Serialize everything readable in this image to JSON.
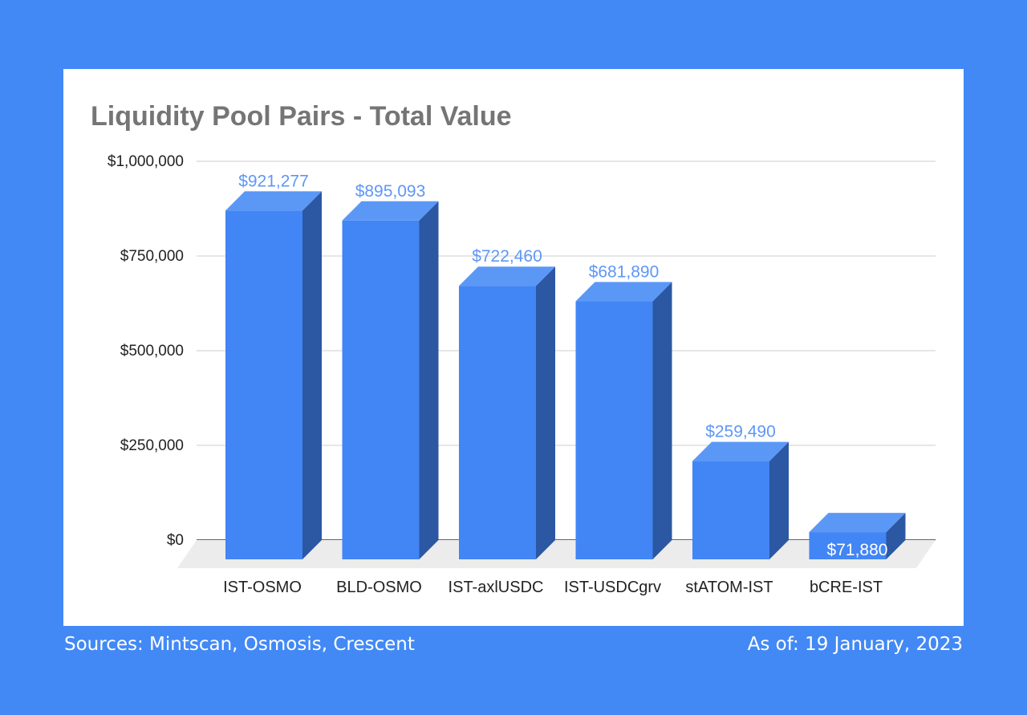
{
  "chart_data": {
    "type": "bar",
    "title": "Liquidity Pool Pairs - Total Value",
    "categories": [
      "IST-OSMO",
      "BLD-OSMO",
      "IST-axlUSDC",
      "IST-USDCgrv",
      "stATOM-IST",
      "bCRE-IST"
    ],
    "values": [
      921277,
      895093,
      722460,
      681890,
      259490,
      71880
    ],
    "value_labels": [
      "$921,277",
      "$895,093",
      "$722,460",
      "$681,890",
      "$259,490",
      "$71,880"
    ],
    "y_ticks": [
      0,
      250000,
      500000,
      750000,
      1000000
    ],
    "y_tick_labels": [
      "$0",
      "$250,000",
      "$500,000",
      "$750,000",
      "$1,000,000"
    ],
    "ylim": [
      0,
      1000000
    ],
    "grid": true,
    "legend": "none",
    "style": "3d-bar",
    "colors": {
      "bar_front": "#4285f4",
      "bar_top": "#5b98f6",
      "bar_side": "#2b57a3",
      "label": "#5e97f6",
      "label_inside": "#ffffff",
      "title": "#757575",
      "grid": "#cccccc",
      "floor": "#ececec"
    }
  },
  "footer": {
    "sources": "Sources: Mintscan, Osmosis, Crescent",
    "as_of": "As of: 19 January, 2023"
  }
}
